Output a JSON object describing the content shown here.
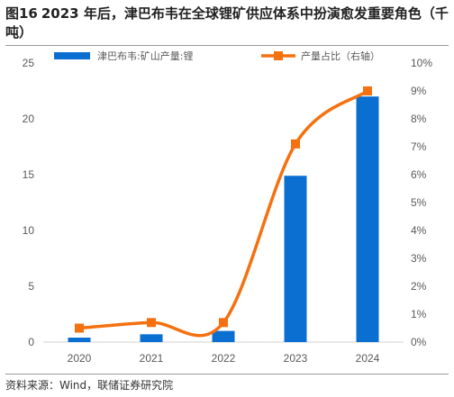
{
  "title": {
    "fig_no": "图16",
    "text": "2023 年后，津巴布韦在全球锂矿供应体系中扮演愈发重要角色（千吨）"
  },
  "source": "资料来源：Wind，联储证券研究院",
  "chart_data": {
    "type": "bar+line",
    "categories": [
      "2020",
      "2021",
      "2022",
      "2023",
      "2024"
    ],
    "series": [
      {
        "name": "津巴布韦:矿山产量:锂",
        "type": "bar",
        "axis": "left",
        "values": [
          0.4,
          0.7,
          1.0,
          14.9,
          22.0
        ]
      },
      {
        "name": "产量占比（右轴）",
        "type": "line",
        "axis": "right",
        "values": [
          0.5,
          0.7,
          0.7,
          7.1,
          9.0
        ]
      }
    ],
    "y_left": {
      "min": 0,
      "max": 25,
      "ticks": [
        0,
        5,
        10,
        15,
        20,
        25
      ]
    },
    "y_right": {
      "min": 0,
      "max": 10,
      "ticks": [
        "0%",
        "1%",
        "2%",
        "3%",
        "4%",
        "5%",
        "6%",
        "7%",
        "8%",
        "9%",
        "10%"
      ]
    },
    "colors": {
      "bar": "#0b6fd1",
      "line": "#f5700f"
    },
    "legend": "top",
    "grid": false
  }
}
